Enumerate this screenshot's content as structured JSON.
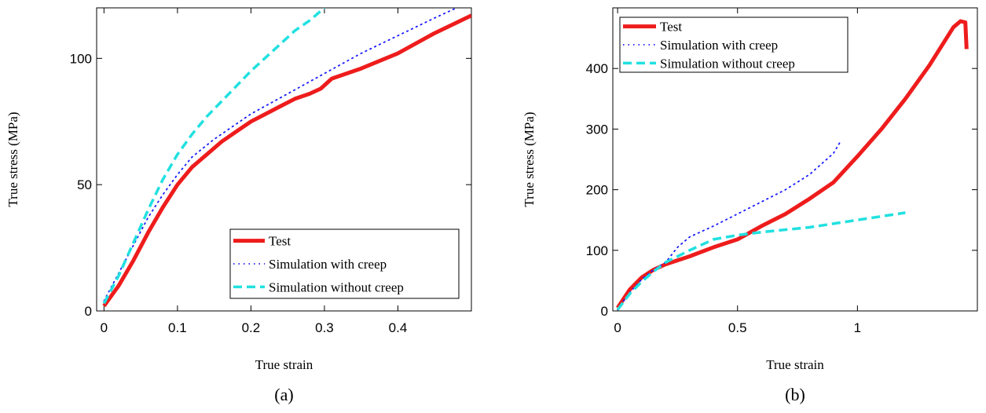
{
  "chart_data": [
    {
      "type": "line",
      "panel_label": "(a)",
      "xlabel": "True strain",
      "ylabel": "True stress (MPa)",
      "xlim": [
        -0.01,
        0.5
      ],
      "ylim": [
        0,
        120
      ],
      "xticks": [
        0,
        0.1,
        0.2,
        0.3,
        0.4
      ],
      "xtick_labels": [
        "0",
        "0.1",
        "0.2",
        "0.3",
        "0.4"
      ],
      "yticks": [
        0,
        50,
        100
      ],
      "ytick_labels": [
        "0",
        "50",
        "100"
      ],
      "grid": false,
      "legend_position": "bottom-right",
      "series": [
        {
          "name": "Test",
          "style": "solid",
          "color": "#ee1c1c",
          "points": [
            [
              0,
              2
            ],
            [
              0.02,
              10
            ],
            [
              0.04,
              20
            ],
            [
              0.06,
              31
            ],
            [
              0.08,
              41
            ],
            [
              0.1,
              50
            ],
            [
              0.12,
              57
            ],
            [
              0.14,
              62
            ],
            [
              0.16,
              67
            ],
            [
              0.18,
              71
            ],
            [
              0.2,
              75
            ],
            [
              0.22,
              78
            ],
            [
              0.24,
              81
            ],
            [
              0.26,
              84
            ],
            [
              0.28,
              86
            ],
            [
              0.295,
              88
            ],
            [
              0.31,
              92
            ],
            [
              0.35,
              96
            ],
            [
              0.4,
              102
            ],
            [
              0.45,
              110
            ],
            [
              0.5,
              117
            ]
          ]
        },
        {
          "name": "Simulation with creep",
          "style": "dotted",
          "color": "#1a1aff",
          "points": [
            [
              0,
              4
            ],
            [
              0.02,
              15
            ],
            [
              0.04,
              26
            ],
            [
              0.06,
              37
            ],
            [
              0.08,
              46
            ],
            [
              0.1,
              54
            ],
            [
              0.12,
              61
            ],
            [
              0.15,
              68
            ],
            [
              0.2,
              78
            ],
            [
              0.25,
              86
            ],
            [
              0.3,
              94
            ],
            [
              0.35,
              102
            ],
            [
              0.4,
              109
            ],
            [
              0.45,
              116
            ],
            [
              0.48,
              120
            ]
          ]
        },
        {
          "name": "Simulation without creep",
          "style": "dashed",
          "color": "#22e0e0",
          "points": [
            [
              0,
              3
            ],
            [
              0.02,
              14
            ],
            [
              0.04,
              27
            ],
            [
              0.06,
              40
            ],
            [
              0.08,
              52
            ],
            [
              0.1,
              62
            ],
            [
              0.12,
              70
            ],
            [
              0.14,
              77
            ],
            [
              0.17,
              86
            ],
            [
              0.2,
              95
            ],
            [
              0.23,
              103
            ],
            [
              0.26,
              111
            ],
            [
              0.28,
              115
            ],
            [
              0.3,
              120
            ]
          ]
        }
      ]
    },
    {
      "type": "line",
      "panel_label": "(b)",
      "xlabel": "True strain",
      "ylabel": "True stress (MPa)",
      "xlim": [
        -0.02,
        1.5
      ],
      "ylim": [
        0,
        500
      ],
      "xticks": [
        0,
        0.5,
        1
      ],
      "xtick_labels": [
        "0",
        "0.5",
        "1"
      ],
      "yticks": [
        0,
        100,
        200,
        300,
        400
      ],
      "ytick_labels": [
        "0",
        "100",
        "200",
        "300",
        "400"
      ],
      "grid": false,
      "legend_position": "top-left",
      "series": [
        {
          "name": "Test",
          "style": "solid",
          "color": "#ee1c1c",
          "points": [
            [
              0,
              5
            ],
            [
              0.05,
              35
            ],
            [
              0.1,
              55
            ],
            [
              0.15,
              68
            ],
            [
              0.2,
              77
            ],
            [
              0.3,
              90
            ],
            [
              0.4,
              105
            ],
            [
              0.5,
              118
            ],
            [
              0.6,
              140
            ],
            [
              0.7,
              160
            ],
            [
              0.8,
              185
            ],
            [
              0.9,
              212
            ],
            [
              1.0,
              255
            ],
            [
              1.1,
              300
            ],
            [
              1.2,
              350
            ],
            [
              1.3,
              405
            ],
            [
              1.4,
              468
            ],
            [
              1.43,
              478
            ],
            [
              1.45,
              476
            ],
            [
              1.455,
              432
            ]
          ]
        },
        {
          "name": "Simulation with creep",
          "style": "dotted",
          "color": "#1a1aff",
          "points": [
            [
              0,
              3
            ],
            [
              0.05,
              30
            ],
            [
              0.1,
              52
            ],
            [
              0.15,
              68
            ],
            [
              0.2,
              80
            ],
            [
              0.25,
              105
            ],
            [
              0.3,
              122
            ],
            [
              0.4,
              140
            ],
            [
              0.5,
              160
            ],
            [
              0.6,
              180
            ],
            [
              0.7,
              200
            ],
            [
              0.8,
              225
            ],
            [
              0.9,
              260
            ],
            [
              0.93,
              280
            ]
          ]
        },
        {
          "name": "Simulation without creep",
          "style": "dashed",
          "color": "#22e0e0",
          "points": [
            [
              0,
              2
            ],
            [
              0.05,
              28
            ],
            [
              0.1,
              48
            ],
            [
              0.15,
              65
            ],
            [
              0.2,
              80
            ],
            [
              0.3,
              100
            ],
            [
              0.4,
              118
            ],
            [
              0.5,
              125
            ],
            [
              0.6,
              130
            ],
            [
              0.8,
              138
            ],
            [
              1.0,
              150
            ],
            [
              1.2,
              162
            ]
          ]
        }
      ]
    }
  ]
}
